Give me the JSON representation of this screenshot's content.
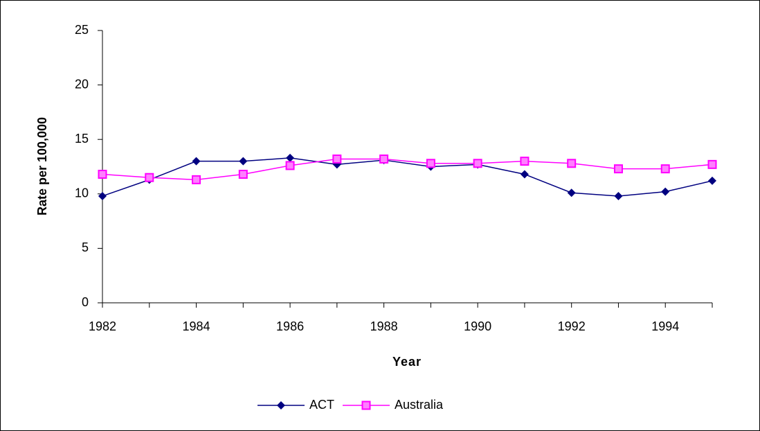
{
  "chart_data": {
    "type": "line",
    "categories": [
      "1982",
      null,
      "1984",
      null,
      "1986",
      null,
      "1988",
      null,
      "1990",
      null,
      "1992",
      null,
      "1994",
      null
    ],
    "x_label": "Year",
    "y_label": "Rate per 100,000",
    "series": [
      {
        "name": "ACT",
        "color": "#000080",
        "marker": "diamond",
        "values": [
          9.8,
          11.3,
          13.0,
          13.0,
          13.3,
          12.7,
          13.1,
          12.5,
          12.7,
          11.8,
          10.1,
          9.8,
          10.2,
          11.2
        ]
      },
      {
        "name": "Australia",
        "color": "#ff00ff",
        "marker": "square",
        "values": [
          11.8,
          11.5,
          11.3,
          11.8,
          12.6,
          13.2,
          13.2,
          12.8,
          12.8,
          13.0,
          12.8,
          12.3,
          12.3,
          12.7
        ]
      }
    ],
    "ylim": [
      0,
      25
    ],
    "yticks": [
      0,
      5,
      10,
      15,
      20,
      25
    ],
    "grid": false,
    "legend": "bottom"
  }
}
